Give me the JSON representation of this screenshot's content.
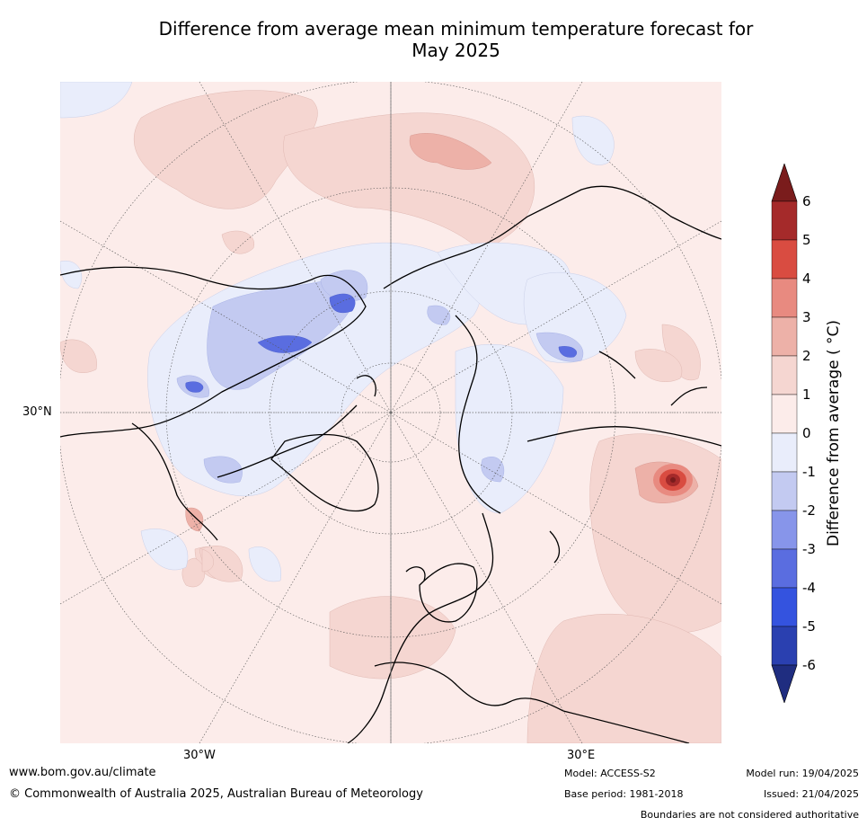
{
  "title_line1": "Difference from average mean minimum temperature forecast for",
  "title_line2": "May 2025",
  "axes": {
    "lat_label": "30°N",
    "lon_left": "30°W",
    "lon_right": "30°E"
  },
  "colorbar": {
    "label": "Difference from average ( °C)",
    "ticks": [
      "6",
      "5",
      "4",
      "3",
      "2",
      "1",
      "0",
      "-1",
      "-2",
      "-3",
      "-4",
      "-5",
      "-6"
    ],
    "range": [
      -6,
      6
    ],
    "colors_top_to_bottom": [
      "#a52a2a",
      "#d94c41",
      "#e88a80",
      "#edb1a8",
      "#f5d6d1",
      "#fcecea",
      "#e9edfb",
      "#c3caf1",
      "#8795ea",
      "#5a6de0",
      "#3453df",
      "#2a40b0"
    ],
    "extend_high_color": "#7a1c1c",
    "extend_low_color": "#1f2d80"
  },
  "footer": {
    "website": "www.bom.gov.au/climate",
    "copyright": "© Commonwealth of Australia 2025, Australian Bureau of Meteorology",
    "model": "Model: ACCESS-S2",
    "base_period": "Base period: 1981-2018",
    "model_run": "Model run: 19/04/2025",
    "issued": "Issued: 21/04/2025",
    "disclaimer": "Boundaries are not considered authoritative"
  }
}
